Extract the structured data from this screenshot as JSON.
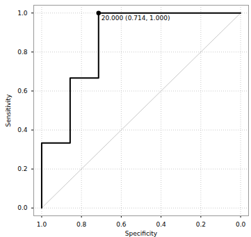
{
  "chart_data": {
    "type": "line",
    "xlabel": "Specificity",
    "ylabel": "Sensitivity",
    "series": [
      {
        "color": "#000000",
        "x": [
          1.0,
          1.0,
          0.857,
          0.857,
          0.714,
          0.714,
          0.0
        ],
        "values": [
          0.0,
          0.333,
          0.333,
          0.667,
          0.667,
          1.0,
          1.0
        ]
      },
      {
        "color": "#c8c8c8",
        "x": [
          1.0,
          0.0
        ],
        "values": [
          0.0,
          1.0
        ]
      }
    ],
    "annotations": [
      {
        "text": "20.000 (0.714, 1.000)",
        "x": 0.714,
        "y": 1.0
      }
    ],
    "xlim": [
      1.04,
      -0.04
    ],
    "ylim": [
      -0.04,
      1.04
    ],
    "xticks": [
      {
        "value": 1.0,
        "label": "1.0"
      },
      {
        "value": 0.8,
        "label": "0.8"
      },
      {
        "value": 0.6,
        "label": "0.6"
      },
      {
        "value": 0.4,
        "label": "0.4"
      },
      {
        "value": 0.2,
        "label": "0.2"
      },
      {
        "value": 0.0,
        "label": "0.0"
      }
    ],
    "yticks": [
      {
        "value": 0.0,
        "label": "0.0"
      },
      {
        "value": 0.2,
        "label": "0.2"
      },
      {
        "value": 0.4,
        "label": "0.4"
      },
      {
        "value": 0.6,
        "label": "0.6"
      },
      {
        "value": 0.8,
        "label": "0.8"
      },
      {
        "value": 1.0,
        "label": "1.0"
      }
    ],
    "grid": true
  }
}
